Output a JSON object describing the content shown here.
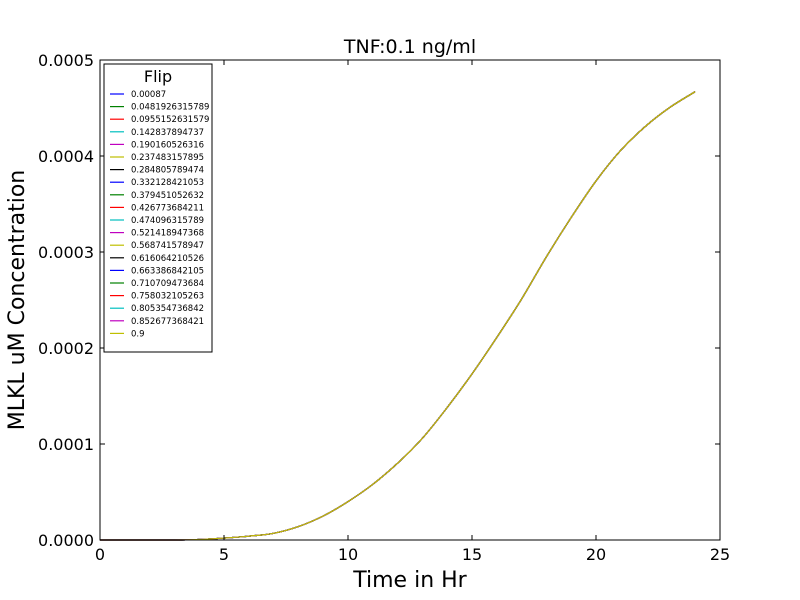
{
  "chart_data": {
    "type": "line",
    "title": "TNF:0.1 ng/ml",
    "xlabel": "Time in Hr",
    "ylabel": "MLKL uM Concentration",
    "xlim": [
      0,
      25
    ],
    "ylim": [
      0,
      0.0005
    ],
    "x_ticks": [
      "0",
      "5",
      "10",
      "15",
      "20",
      "25"
    ],
    "y_ticks": [
      "0.0000",
      "0.0001",
      "0.0002",
      "0.0003",
      "0.0004",
      "0.0005"
    ],
    "grid": false,
    "legend": {
      "title": "Flip",
      "position": "top-left"
    },
    "x": [
      0,
      1,
      2,
      3,
      4,
      5,
      6,
      7,
      8,
      9,
      10,
      11,
      12,
      13,
      14,
      15,
      16,
      17,
      18,
      19,
      20,
      21,
      22,
      23,
      24
    ],
    "series": [
      {
        "name": "0.00087",
        "color": "#0000ff",
        "values": [
          0,
          0,
          0,
          0,
          5e-07,
          2e-06,
          4e-06,
          7e-06,
          1.4e-05,
          2.5e-05,
          4e-05,
          5.8e-05,
          8e-05,
          0.000106,
          0.000138,
          0.000173,
          0.000211,
          0.000251,
          0.000295,
          0.000336,
          0.000374,
          0.000406,
          0.000431,
          0.000451,
          0.000467
        ]
      },
      {
        "name": "0.0481926315789",
        "color": "#008000",
        "values": [
          0,
          0,
          0,
          0,
          5e-07,
          2e-06,
          4e-06,
          7e-06,
          1.4e-05,
          2.5e-05,
          4e-05,
          5.8e-05,
          8e-05,
          0.000106,
          0.000138,
          0.000173,
          0.000211,
          0.000251,
          0.000295,
          0.000336,
          0.000374,
          0.000406,
          0.000431,
          0.000451,
          0.000467
        ]
      },
      {
        "name": "0.0955152631579",
        "color": "#ff0000",
        "values": [
          0,
          0,
          0,
          0,
          5e-07,
          2e-06,
          4e-06,
          7e-06,
          1.4e-05,
          2.5e-05,
          4e-05,
          5.8e-05,
          8e-05,
          0.000106,
          0.000138,
          0.000173,
          0.000211,
          0.000251,
          0.000295,
          0.000336,
          0.000374,
          0.000406,
          0.000431,
          0.000451,
          0.000467
        ]
      },
      {
        "name": "0.142837894737",
        "color": "#00bfbf",
        "values": [
          0,
          0,
          0,
          0,
          5e-07,
          2e-06,
          4e-06,
          7e-06,
          1.4e-05,
          2.5e-05,
          4e-05,
          5.8e-05,
          8e-05,
          0.000106,
          0.000138,
          0.000173,
          0.000211,
          0.000251,
          0.000295,
          0.000336,
          0.000374,
          0.000406,
          0.000431,
          0.000451,
          0.000467
        ]
      },
      {
        "name": "0.190160526316",
        "color": "#bf00bf",
        "values": [
          0,
          0,
          0,
          0,
          5e-07,
          2e-06,
          4e-06,
          7e-06,
          1.4e-05,
          2.5e-05,
          4e-05,
          5.8e-05,
          8e-05,
          0.000106,
          0.000138,
          0.000173,
          0.000211,
          0.000251,
          0.000295,
          0.000336,
          0.000374,
          0.000406,
          0.000431,
          0.000451,
          0.000467
        ]
      },
      {
        "name": "0.237483157895",
        "color": "#bfbf00",
        "values": [
          0,
          0,
          0,
          0,
          5e-07,
          2e-06,
          4e-06,
          7e-06,
          1.4e-05,
          2.5e-05,
          4e-05,
          5.8e-05,
          8e-05,
          0.000106,
          0.000138,
          0.000173,
          0.000211,
          0.000251,
          0.000295,
          0.000336,
          0.000374,
          0.000406,
          0.000431,
          0.000451,
          0.000467
        ]
      },
      {
        "name": "0.284805789474",
        "color": "#000000",
        "values": [
          0,
          0,
          0,
          0,
          5e-07,
          2e-06,
          4e-06,
          7e-06,
          1.4e-05,
          2.5e-05,
          4e-05,
          5.8e-05,
          8e-05,
          0.000106,
          0.000138,
          0.000173,
          0.000211,
          0.000251,
          0.000295,
          0.000336,
          0.000374,
          0.000406,
          0.000431,
          0.000451,
          0.000467
        ]
      },
      {
        "name": "0.332128421053",
        "color": "#0000ff",
        "values": [
          0,
          0,
          0,
          0,
          5e-07,
          2e-06,
          4e-06,
          7e-06,
          1.4e-05,
          2.5e-05,
          4e-05,
          5.8e-05,
          8e-05,
          0.000106,
          0.000138,
          0.000173,
          0.000211,
          0.000251,
          0.000295,
          0.000336,
          0.000374,
          0.000406,
          0.000431,
          0.000451,
          0.000467
        ]
      },
      {
        "name": "0.379451052632",
        "color": "#008000",
        "values": [
          0,
          0,
          0,
          0,
          5e-07,
          2e-06,
          4e-06,
          7e-06,
          1.4e-05,
          2.5e-05,
          4e-05,
          5.8e-05,
          8e-05,
          0.000106,
          0.000138,
          0.000173,
          0.000211,
          0.000251,
          0.000295,
          0.000336,
          0.000374,
          0.000406,
          0.000431,
          0.000451,
          0.000467
        ]
      },
      {
        "name": "0.426773684211",
        "color": "#ff0000",
        "values": [
          0,
          0,
          0,
          0,
          5e-07,
          2e-06,
          4e-06,
          7e-06,
          1.4e-05,
          2.5e-05,
          4e-05,
          5.8e-05,
          8e-05,
          0.000106,
          0.000138,
          0.000173,
          0.000211,
          0.000251,
          0.000295,
          0.000336,
          0.000374,
          0.000406,
          0.000431,
          0.000451,
          0.000467
        ]
      },
      {
        "name": "0.474096315789",
        "color": "#00bfbf",
        "values": [
          0,
          0,
          0,
          0,
          5e-07,
          2e-06,
          4e-06,
          7e-06,
          1.4e-05,
          2.5e-05,
          4e-05,
          5.8e-05,
          8e-05,
          0.000106,
          0.000138,
          0.000173,
          0.000211,
          0.000251,
          0.000295,
          0.000336,
          0.000374,
          0.000406,
          0.000431,
          0.000451,
          0.000467
        ]
      },
      {
        "name": "0.521418947368",
        "color": "#bf00bf",
        "values": [
          0,
          0,
          0,
          0,
          5e-07,
          2e-06,
          4e-06,
          7e-06,
          1.4e-05,
          2.5e-05,
          4e-05,
          5.8e-05,
          8e-05,
          0.000106,
          0.000138,
          0.000173,
          0.000211,
          0.000251,
          0.000295,
          0.000336,
          0.000374,
          0.000406,
          0.000431,
          0.000451,
          0.000467
        ]
      },
      {
        "name": "0.568741578947",
        "color": "#bfbf00",
        "values": [
          0,
          0,
          0,
          0,
          5e-07,
          2e-06,
          4e-06,
          7e-06,
          1.4e-05,
          2.5e-05,
          4e-05,
          5.8e-05,
          8e-05,
          0.000106,
          0.000138,
          0.000173,
          0.000211,
          0.000251,
          0.000295,
          0.000336,
          0.000374,
          0.000406,
          0.000431,
          0.000451,
          0.000467
        ]
      },
      {
        "name": "0.616064210526",
        "color": "#000000",
        "values": [
          0,
          0,
          0,
          0,
          5e-07,
          2e-06,
          4e-06,
          7e-06,
          1.4e-05,
          2.5e-05,
          4e-05,
          5.8e-05,
          8e-05,
          0.000106,
          0.000138,
          0.000173,
          0.000211,
          0.000251,
          0.000295,
          0.000336,
          0.000374,
          0.000406,
          0.000431,
          0.000451,
          0.000467
        ]
      },
      {
        "name": "0.663386842105",
        "color": "#0000ff",
        "values": [
          0,
          0,
          0,
          0,
          5e-07,
          2e-06,
          4e-06,
          7e-06,
          1.4e-05,
          2.5e-05,
          4e-05,
          5.8e-05,
          8e-05,
          0.000106,
          0.000138,
          0.000173,
          0.000211,
          0.000251,
          0.000295,
          0.000336,
          0.000374,
          0.000406,
          0.000431,
          0.000451,
          0.000467
        ]
      },
      {
        "name": "0.710709473684",
        "color": "#008000",
        "values": [
          0,
          0,
          0,
          0,
          5e-07,
          2e-06,
          4e-06,
          7e-06,
          1.4e-05,
          2.5e-05,
          4e-05,
          5.8e-05,
          8e-05,
          0.000106,
          0.000138,
          0.000173,
          0.000211,
          0.000251,
          0.000295,
          0.000336,
          0.000374,
          0.000406,
          0.000431,
          0.000451,
          0.000467
        ]
      },
      {
        "name": "0.758032105263",
        "color": "#ff0000",
        "values": [
          0,
          0,
          0,
          0,
          5e-07,
          2e-06,
          4e-06,
          7e-06,
          1.4e-05,
          2.5e-05,
          4e-05,
          5.8e-05,
          8e-05,
          0.000106,
          0.000138,
          0.000173,
          0.000211,
          0.000251,
          0.000295,
          0.000336,
          0.000374,
          0.000406,
          0.000431,
          0.000451,
          0.000467
        ]
      },
      {
        "name": "0.805354736842",
        "color": "#00bfbf",
        "values": [
          0,
          0,
          0,
          0,
          5e-07,
          2e-06,
          4e-06,
          7e-06,
          1.4e-05,
          2.5e-05,
          4e-05,
          5.8e-05,
          8e-05,
          0.000106,
          0.000138,
          0.000173,
          0.000211,
          0.000251,
          0.000295,
          0.000336,
          0.000374,
          0.000406,
          0.000431,
          0.000451,
          0.000467
        ]
      },
      {
        "name": "0.852677368421",
        "color": "#bf00bf",
        "values": [
          0,
          0,
          0,
          0,
          5e-07,
          2e-06,
          4e-06,
          7e-06,
          1.4e-05,
          2.5e-05,
          4e-05,
          5.8e-05,
          8e-05,
          0.000106,
          0.000138,
          0.000173,
          0.000211,
          0.000251,
          0.000295,
          0.000336,
          0.000374,
          0.000406,
          0.000431,
          0.000451,
          0.000467
        ]
      },
      {
        "name": "0.9",
        "color": "#bfbf00",
        "values": [
          0,
          0,
          0,
          0,
          5e-07,
          2e-06,
          4e-06,
          7e-06,
          1.4e-05,
          2.5e-05,
          4e-05,
          5.8e-05,
          8e-05,
          0.000106,
          0.000138,
          0.000173,
          0.000211,
          0.000251,
          0.000295,
          0.000336,
          0.000374,
          0.000406,
          0.000431,
          0.000451,
          0.000467
        ]
      }
    ]
  }
}
